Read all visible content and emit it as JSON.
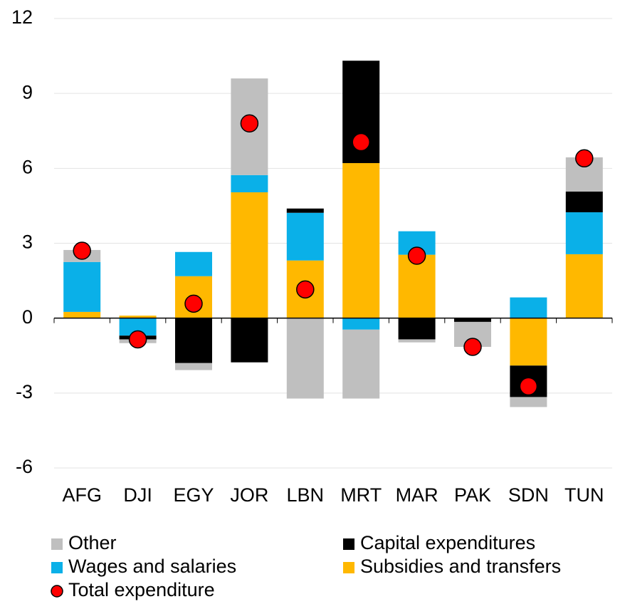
{
  "chart_data": {
    "type": "bar",
    "stacked": true,
    "categories": [
      "AFG",
      "DJI",
      "EGY",
      "JOR",
      "LBN",
      "MRT",
      "MAR",
      "PAK",
      "SDN",
      "TUN"
    ],
    "series": [
      {
        "name": "Subsidies and transfers",
        "color": "#ffb800",
        "values": [
          0.25,
          0.1,
          1.68,
          5.04,
          2.31,
          6.21,
          2.54,
          0,
          -1.9,
          2.56
        ]
      },
      {
        "name": "Wages and salaries",
        "color": "#0ab0e8",
        "values": [
          2.0,
          -0.7,
          0.97,
          0.69,
          1.91,
          -0.46,
          0.94,
          0,
          0.83,
          1.68
        ]
      },
      {
        "name": "Capital expenditures",
        "color": "#000000",
        "values": [
          0,
          -0.15,
          -1.8,
          -1.77,
          0.17,
          4.1,
          -0.85,
          -0.15,
          -1.26,
          0.83
        ]
      },
      {
        "name": "Other",
        "color": "#bfbfbf",
        "values": [
          0.48,
          -0.15,
          -0.28,
          3.87,
          -3.22,
          -2.76,
          -0.12,
          -1.0,
          -0.4,
          1.37
        ]
      },
      {
        "name": "Total expenditure",
        "type": "dot",
        "color": "#ff0000",
        "values": [
          2.7,
          -0.85,
          0.58,
          7.8,
          1.15,
          7.05,
          2.5,
          -1.15,
          -2.73,
          6.4
        ]
      }
    ],
    "ylim": [
      -6,
      12
    ],
    "yticks": [
      -6,
      -3,
      0,
      3,
      6,
      9,
      12
    ],
    "grid": true
  }
}
